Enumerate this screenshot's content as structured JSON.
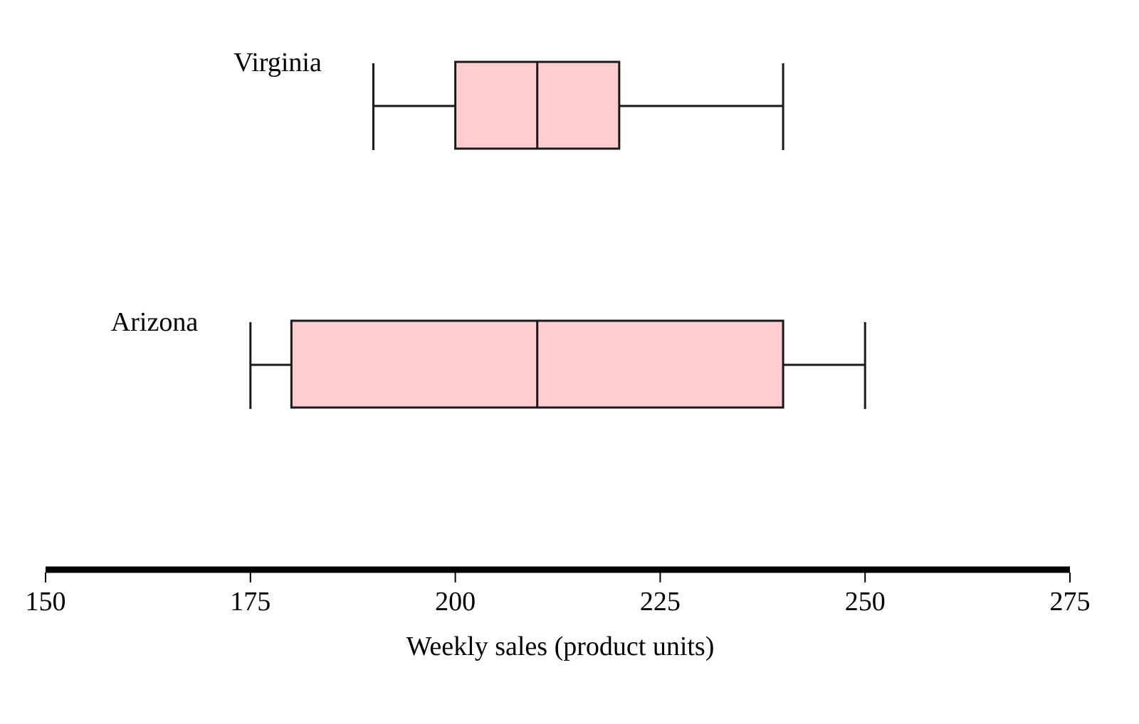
{
  "chart_data": {
    "type": "boxplot",
    "title": "",
    "xlabel": "Weekly sales (product units)",
    "ylabel": "",
    "xlim": [
      150,
      275
    ],
    "ticks": [
      150,
      175,
      200,
      225,
      250,
      275
    ],
    "grid": false,
    "orientation": "horizontal",
    "series": [
      {
        "name": "Virginia",
        "min": 190,
        "q1": 200,
        "median": 210,
        "q3": 220,
        "max": 240
      },
      {
        "name": "Arizona",
        "min": 175,
        "q1": 180,
        "median": 210,
        "q3": 240,
        "max": 250
      }
    ]
  },
  "style": {
    "box_fill": "#FFCCD0",
    "stroke": "#1a1a1a",
    "axis_color": "#000000"
  },
  "axis": {
    "label": "Weekly sales (product units)",
    "tick_labels": [
      "150",
      "175",
      "200",
      "225",
      "250",
      "275"
    ]
  }
}
